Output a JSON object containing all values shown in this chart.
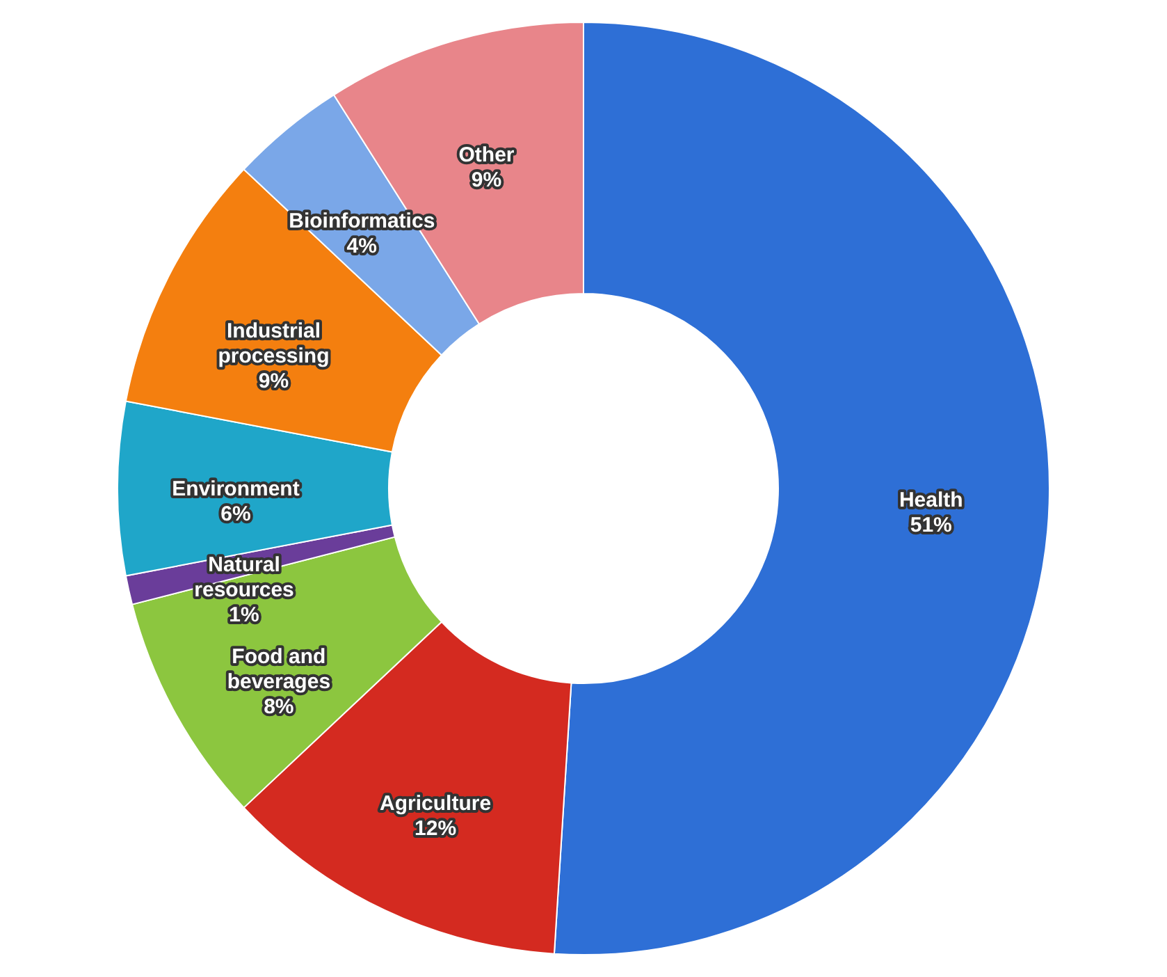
{
  "chart_data": {
    "type": "donut",
    "categories": [
      "Health",
      "Agriculture",
      "Food and beverages",
      "Natural resources",
      "Environment",
      "Industrial processing",
      "Bioinformatics",
      "Other"
    ],
    "values": [
      51,
      12,
      8,
      1,
      6,
      9,
      4,
      9
    ],
    "value_labels": [
      "51%",
      "12%",
      "8%",
      "1%",
      "6%",
      "9%",
      "4%",
      "9%"
    ],
    "colors": [
      "#2e6fd6",
      "#d42a20",
      "#8cc63f",
      "#6a3d9a",
      "#1fa6c9",
      "#f47f0f",
      "#7aa7e8",
      "#e8858a"
    ]
  }
}
